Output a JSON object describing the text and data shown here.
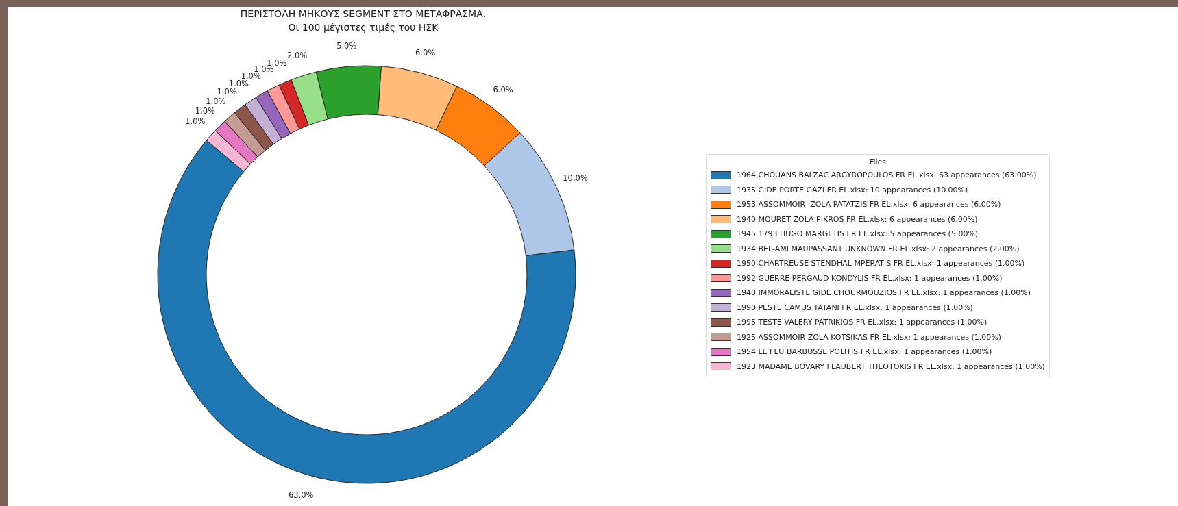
{
  "chart_data": {
    "type": "donut",
    "title": "ΠΕΡΙΣΤΟΛΗ ΜΗΚΟΥΣ SEGMENT ΣΤΟ ΜΕΤΑΦΡΑΣΜΑ.",
    "subtitle": "Οι 100 μέγιστες τιμές του ΗΣΚ",
    "legend_title": "Files",
    "legend": "right",
    "categories": [
      "1964 CHOUANS BALZAC ARGYROPOULOS FR EL.xlsx: 63 appearances (63.00%)",
      "1935 GIDE PORTE GAZI FR EL.xlsx: 10 appearances (10.00%)",
      "1953 ASSOMMOIR  ZOLA PATATZIS FR EL.xlsx: 6 appearances (6.00%)",
      "1940 MOURET ZOLA PIKROS FR EL.xlsx: 6 appearances (6.00%)",
      "1945 1793 HUGO MARGETIS FR EL.xlsx: 5 appearances (5.00%)",
      "1934 BEL-AMI MAUPASSANT UNKNOWN FR EL.xlsx: 2 appearances (2.00%)",
      "1950 CHARTREUSE STENDHAL MPERATIS FR EL.xlsx: 1 appearances (1.00%)",
      "1992 GUERRE PERGAUD KONDYLIS FR EL.xlsx: 1 appearances (1.00%)",
      "1940 IMMORALISTE GIDE CHOURMOUZIOS FR EL.xlsx: 1 appearances (1.00%)",
      "1990 PESTE CAMUS TATANI FR EL.xlsx: 1 appearances (1.00%)",
      "1995 TESTE VALERY PATRIKIOS FR EL.xlsx: 1 appearances (1.00%)",
      "1925 ASSOMMOIR ZOLA KOTSIKAS FR EL.xlsx: 1 appearances (1.00%)",
      "1954 LE FEU BARBUSSE POLITIS FR EL.xlsx: 1 appearances (1.00%)",
      "1923 MADAME BOVARY FLAUBERT THEOTOKIS FR EL.xlsx: 1 appearances (1.00%)"
    ],
    "values": [
      63,
      10,
      6,
      6,
      5,
      2,
      1,
      1,
      1,
      1,
      1,
      1,
      1,
      1
    ],
    "value_labels": [
      "63.0%",
      "10.0%",
      "6.0%",
      "6.0%",
      "5.0%",
      "2.0%",
      "1.0%",
      "1.0%",
      "1.0%",
      "1.0%",
      "1.0%",
      "1.0%",
      "1.0%",
      "1.0%"
    ],
    "colors": [
      "#1f77b4",
      "#aec7e8",
      "#ff7f0e",
      "#ffbb78",
      "#2ca02c",
      "#98df8a",
      "#d62728",
      "#ff9896",
      "#9467bd",
      "#c5b0d5",
      "#8c564b",
      "#c49c94",
      "#e377c2",
      "#f7b6d2"
    ]
  }
}
